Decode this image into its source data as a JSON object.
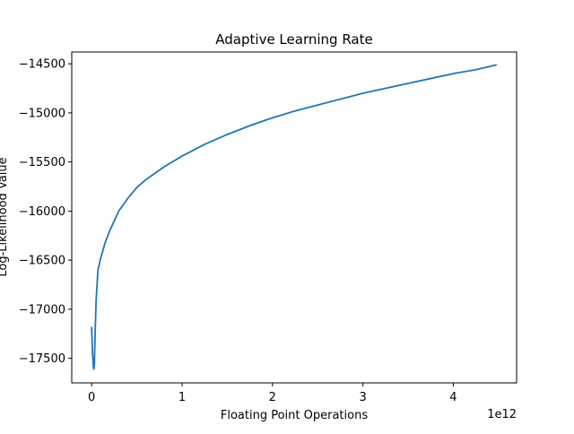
{
  "chart_data": {
    "type": "line",
    "title": "Adaptive Learning Rate",
    "xlabel": "Floating Point Operations",
    "ylabel": "Log-Likelihood Value",
    "x_offset_label": "1e12",
    "x_scale": 1000000000000.0,
    "xlim": [
      -220000000000.0,
      4700000000000.0
    ],
    "ylim": [
      -17750,
      -14380
    ],
    "x_ticks": [
      0,
      1000000000000.0,
      2000000000000.0,
      3000000000000.0,
      4000000000000.0
    ],
    "x_tick_labels": [
      "0",
      "1",
      "2",
      "3",
      "4"
    ],
    "y_ticks": [
      -17500,
      -17000,
      -16500,
      -16000,
      -15500,
      -15000,
      -14500
    ],
    "y_tick_labels": [
      "−17500",
      "−17000",
      "−16500",
      "−16000",
      "−15500",
      "−15000",
      "−14500"
    ],
    "grid": false,
    "legend": "none",
    "series": [
      {
        "color": "#1f77b4",
        "x": [
          0,
          10000000000.0,
          20000000000.0,
          25000000000.0,
          30000000000.0,
          40000000000.0,
          50000000000.0,
          70000000000.0,
          100000000000.0,
          150000000000.0,
          200000000000.0,
          300000000000.0,
          400000000000.0,
          500000000000.0,
          600000000000.0,
          800000000000.0,
          1000000000000.0,
          1250000000000.0,
          1500000000000.0,
          1750000000000.0,
          2000000000000.0,
          2250000000000.0,
          2500000000000.0,
          2750000000000.0,
          3000000000000.0,
          3250000000000.0,
          3500000000000.0,
          3750000000000.0,
          4000000000000.0,
          4250000000000.0,
          4480000000000.0
        ],
        "y": [
          -17180,
          -17450,
          -17590,
          -17610,
          -17560,
          -17200,
          -16900,
          -16600,
          -16480,
          -16320,
          -16200,
          -16000,
          -15870,
          -15760,
          -15680,
          -15550,
          -15440,
          -15320,
          -15220,
          -15130,
          -15050,
          -14980,
          -14920,
          -14860,
          -14800,
          -14750,
          -14700,
          -14650,
          -14600,
          -14560,
          -14510
        ]
      }
    ]
  }
}
